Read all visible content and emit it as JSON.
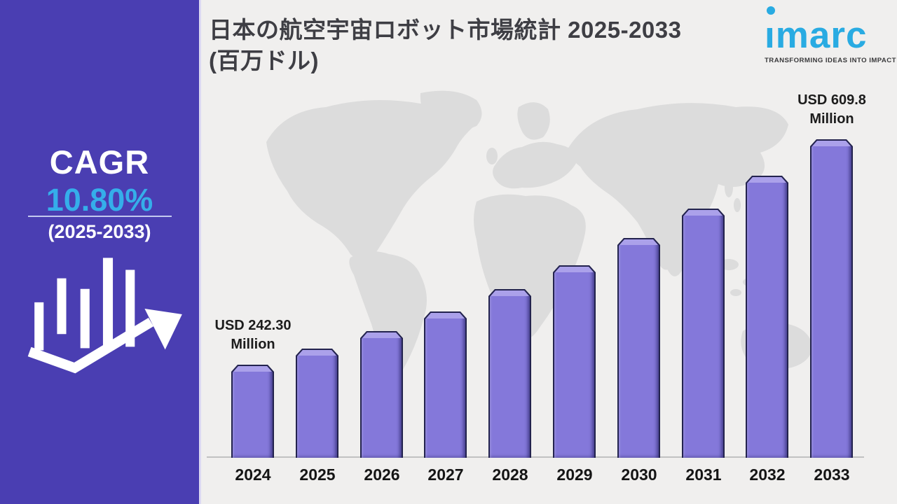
{
  "header": {
    "title_line1": "日本の航空宇宙ロボット市場統計 2025-2033",
    "title_line2": "(百万ドル)"
  },
  "logo": {
    "brand": "imarc",
    "tagline": "TRANSFORMING IDEAS INTO IMPACT",
    "brand_color": "#29abe2"
  },
  "sidebar": {
    "cagr_label": "CAGR",
    "cagr_value": "10.80%",
    "cagr_period": "(2025-2033)",
    "background_color": "#4a3eb2",
    "accent_color": "#35aeea",
    "icon": "growth-chart-arrow"
  },
  "chart_data": {
    "type": "bar",
    "title": "日本の航空宇宙ロボット市場統計 2025-2033 (百万ドル)",
    "unit": "USD Million",
    "categories": [
      "2024",
      "2025",
      "2026",
      "2027",
      "2028",
      "2029",
      "2030",
      "2031",
      "2032",
      "2033"
    ],
    "values": [
      242.3,
      268.5,
      297.5,
      329.6,
      365.2,
      404.7,
      448.4,
      496.8,
      550.4,
      609.8
    ],
    "cagr_percent": 10.8,
    "labeled_points": [
      {
        "year": "2024",
        "label": "USD 242.30 Million"
      },
      {
        "year": "2033",
        "label": "USD 609.8 Million"
      }
    ],
    "annotations": [
      {
        "year": "2024",
        "line1": "USD 242.30",
        "line2": "Million"
      },
      {
        "year": "2033",
        "line1": "USD 609.8",
        "line2": "Million"
      }
    ],
    "bar_color": "#8478da",
    "bar_highlight": "#aba1ea",
    "bar_border": "#23234e",
    "axis": {
      "x_labels_visible": true,
      "y_axis_visible": false,
      "gridlines": false,
      "legend": "none",
      "background": "world-map-silhouette"
    }
  }
}
